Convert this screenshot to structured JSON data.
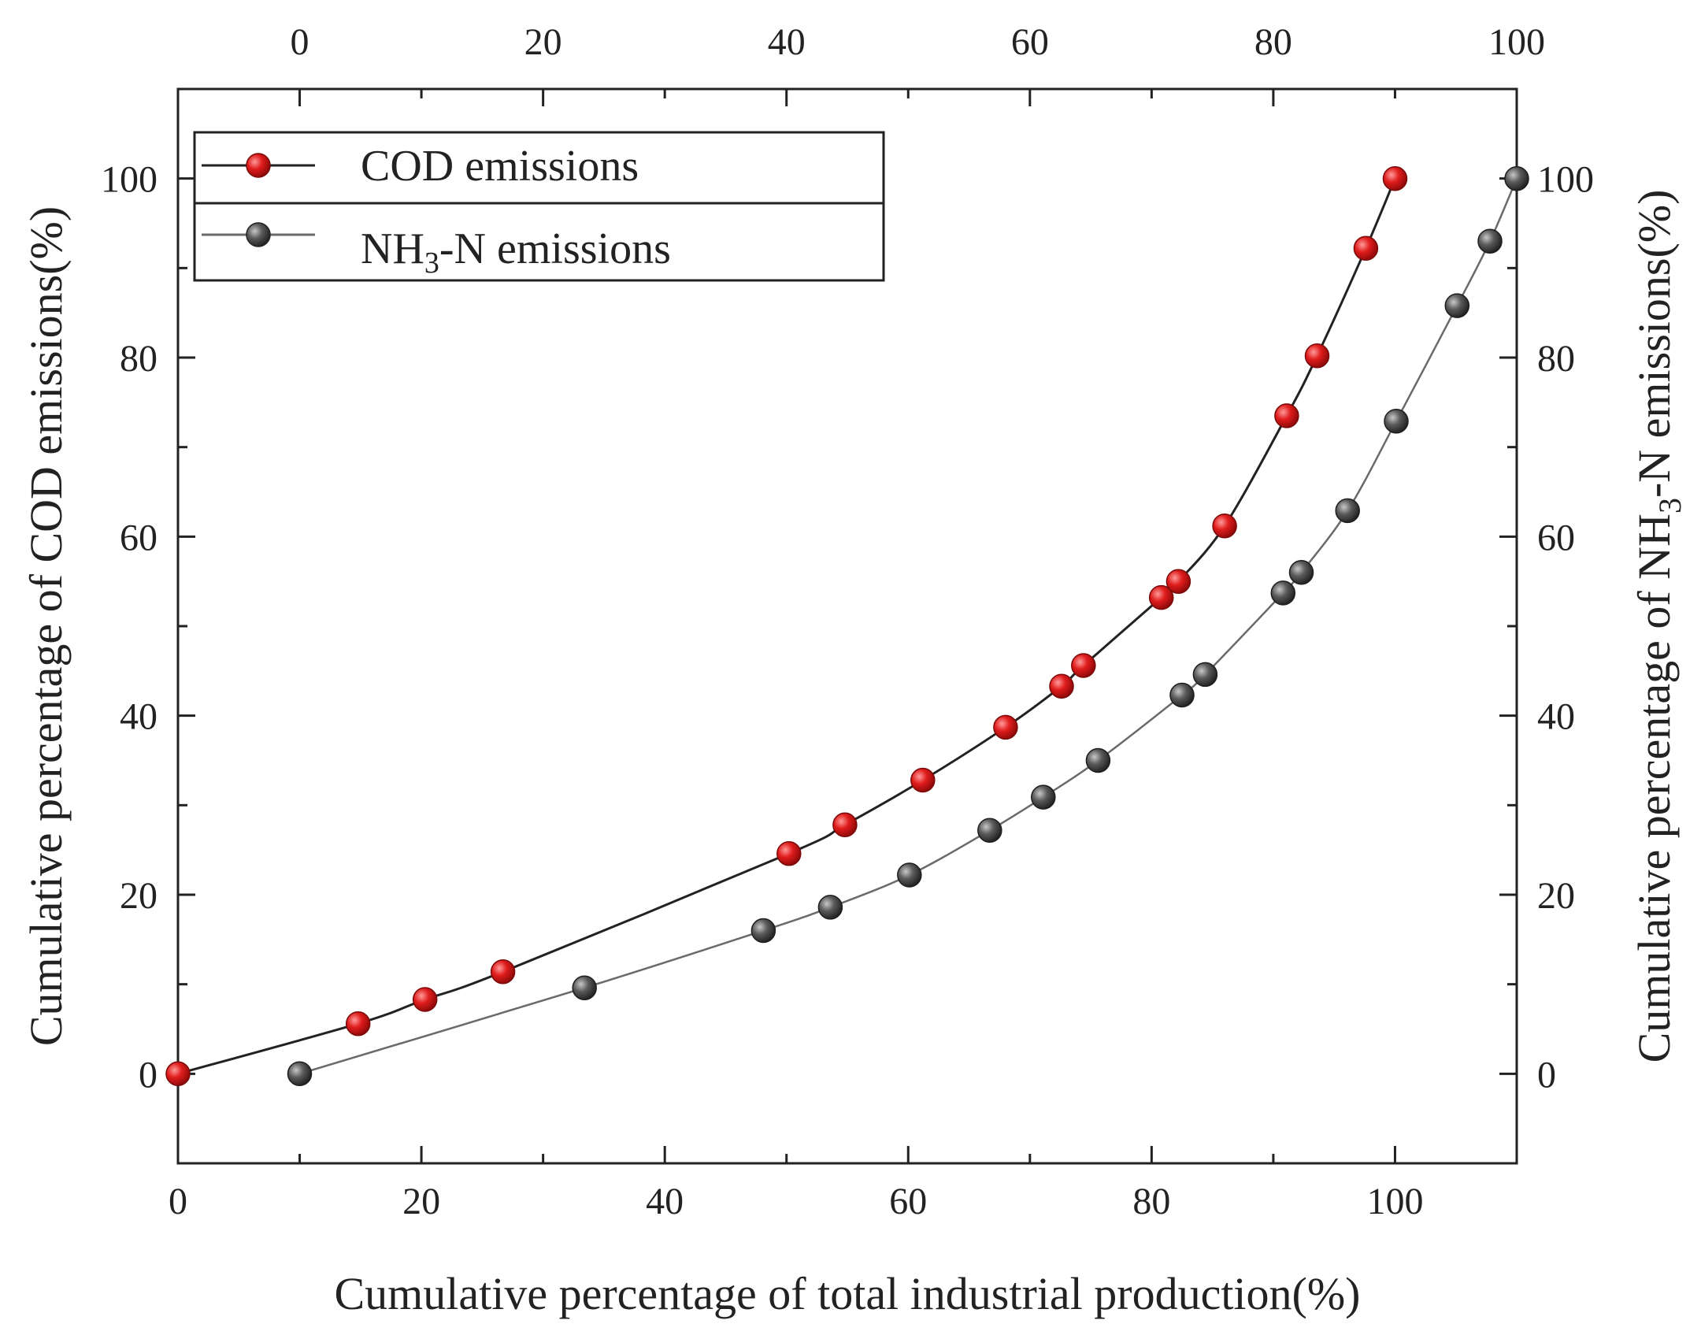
{
  "chart_data": {
    "type": "line",
    "title": "",
    "xlabel": "Cumulative percentage of total industrial production(%)",
    "ylabel": "Cumulative percentage of COD emissions(%)",
    "ylabel_right": {
      "prefix": "Cumulative percentage of NH",
      "subscript": "3",
      "suffix": "-N emissions(%)"
    },
    "xlim": [
      0,
      110
    ],
    "ylim": [
      -10,
      110
    ],
    "x_ticks": [
      0,
      20,
      40,
      60,
      80,
      100
    ],
    "y_ticks": [
      0,
      20,
      40,
      60,
      80,
      100
    ],
    "top_xlim": [
      -10,
      100
    ],
    "top_x_ticks": [
      0,
      20,
      40,
      60,
      80,
      100
    ],
    "right_ylim": [
      -10,
      110
    ],
    "right_y_ticks": [
      0,
      20,
      40,
      60,
      80,
      100
    ],
    "grid": false,
    "legend_position": "top-left",
    "series": [
      {
        "name": "COD emissions",
        "label": {
          "prefix": "COD emissions",
          "subscript": "",
          "suffix": ""
        },
        "color": "#c81414",
        "line_color": "#222222",
        "x": [
          0,
          14.8,
          20.3,
          26.7,
          50.2,
          54.8,
          61.2,
          68.0,
          72.6,
          74.4,
          80.8,
          82.2,
          86.0,
          91.1,
          93.6,
          97.6,
          100
        ],
        "y": [
          0,
          5.6,
          8.3,
          11.4,
          24.6,
          27.8,
          32.8,
          38.7,
          43.3,
          45.6,
          53.2,
          55.0,
          61.2,
          73.5,
          80.2,
          92.2,
          100
        ]
      },
      {
        "name": "NH3-N emissions",
        "label": {
          "prefix": "NH",
          "subscript": "3",
          "suffix": "-N emissions"
        },
        "color": "#4a4a4a",
        "line_color": "#6a6a6a",
        "x": [
          10.0,
          33.4,
          48.1,
          53.6,
          60.1,
          66.7,
          71.1,
          75.6,
          82.5,
          84.4,
          90.8,
          92.3,
          96.1,
          100.1,
          105.1,
          107.8,
          110
        ],
        "y": [
          0,
          9.6,
          16.0,
          18.6,
          22.2,
          27.2,
          30.9,
          35.0,
          42.3,
          44.6,
          53.7,
          56.0,
          62.9,
          72.9,
          85.8,
          93.0,
          100
        ]
      }
    ]
  }
}
